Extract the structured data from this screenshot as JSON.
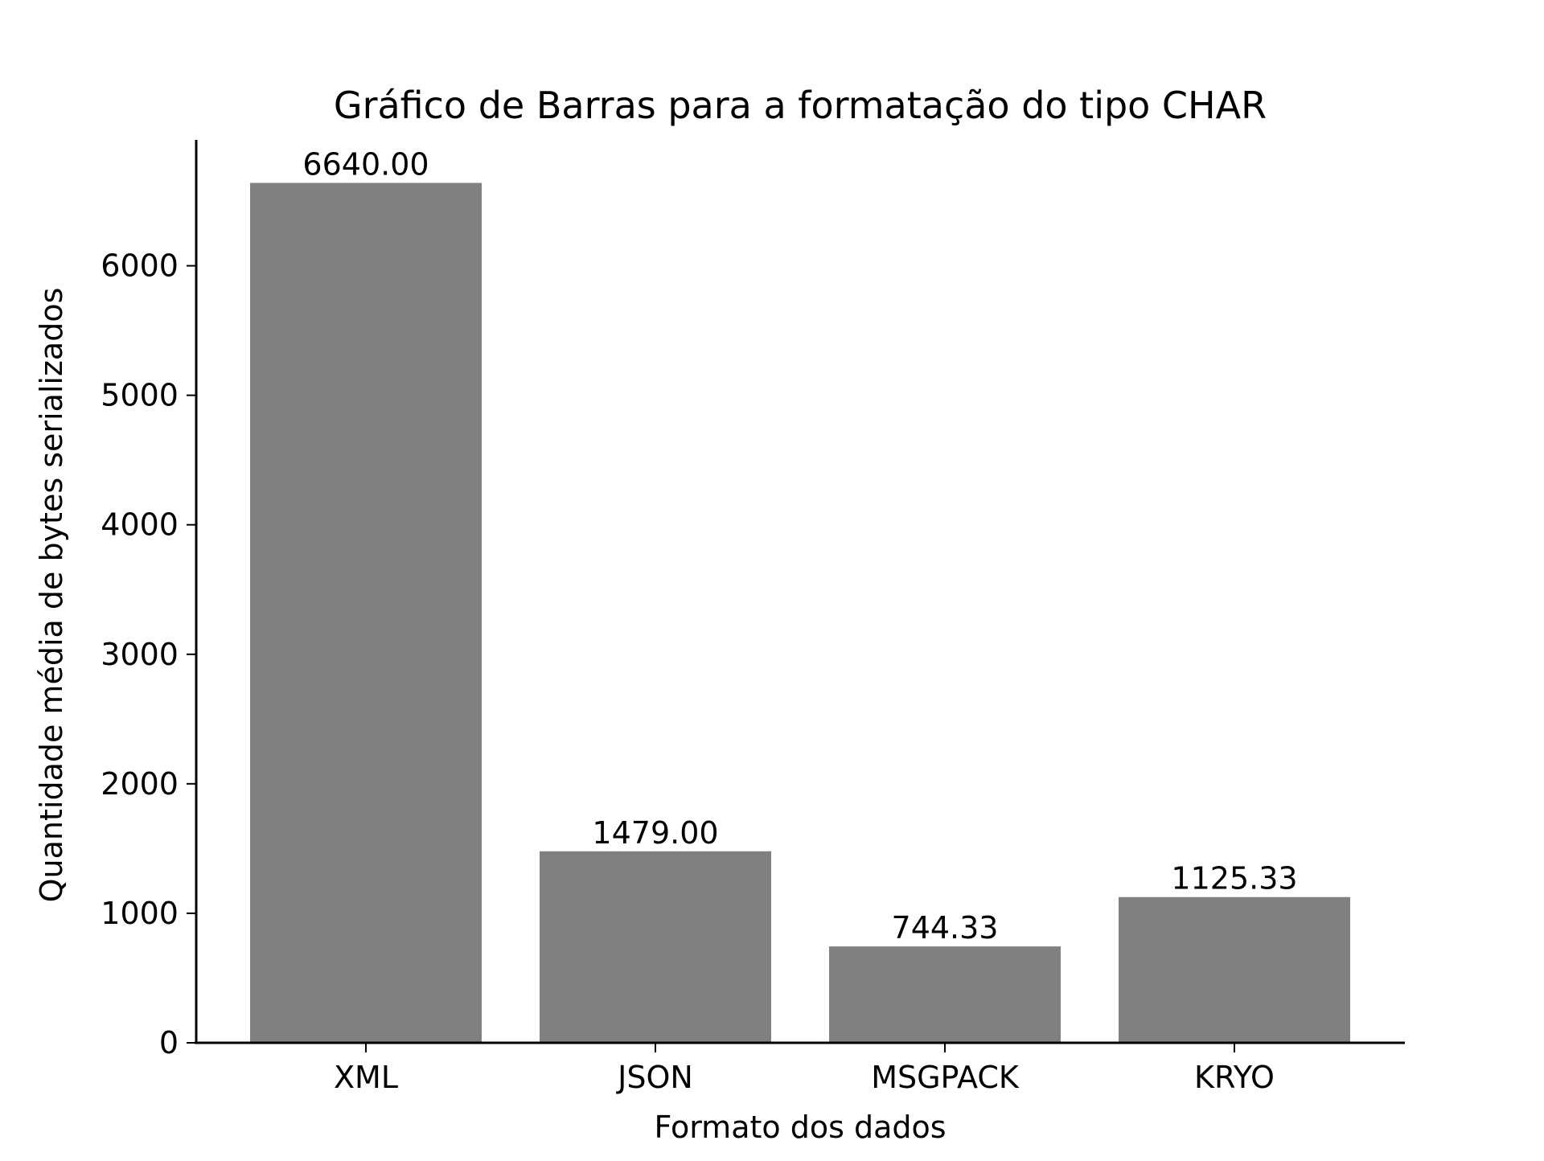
{
  "chart_data": {
    "type": "bar",
    "title": "Gráfico de Barras para a formatação do tipo CHAR",
    "xlabel": "Formato dos dados",
    "ylabel": "Quantidade média de bytes serializados",
    "categories": [
      "XML",
      "JSON",
      "MSGPACK",
      "KRYO"
    ],
    "values": [
      6640.0,
      1479.0,
      744.33,
      1125.33
    ],
    "value_labels": [
      "6640.00",
      "1479.00",
      "744.33",
      "1125.33"
    ],
    "yticks": [
      0,
      1000,
      2000,
      3000,
      4000,
      5000,
      6000
    ],
    "ytick_labels": [
      "0",
      "1000",
      "2000",
      "3000",
      "4000",
      "5000",
      "6000"
    ],
    "ylim": [
      0,
      6972
    ],
    "grid": false,
    "legend": "none",
    "bar_color": "#808080"
  }
}
